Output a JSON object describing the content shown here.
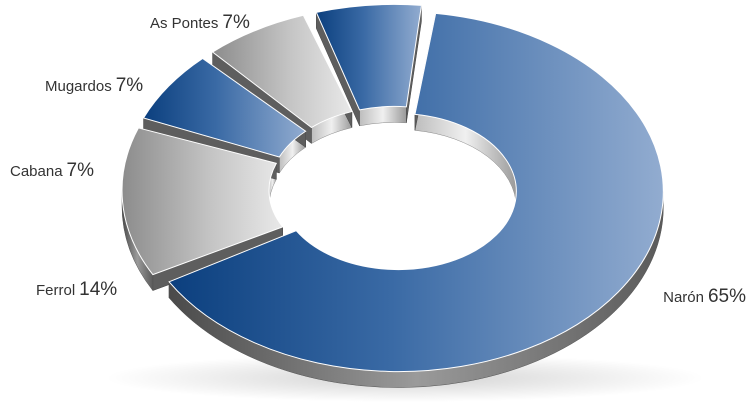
{
  "chart_data": {
    "type": "pie",
    "title": "",
    "slices": [
      {
        "label": "Narón",
        "value": 65,
        "display": "65%",
        "color": "#2f5e9a"
      },
      {
        "label": "Ferrol",
        "value": 14,
        "display": "14%",
        "color": "#a9a9a9"
      },
      {
        "label": "Cabana",
        "value": 7,
        "display": "7%",
        "color": "#2f5e9a"
      },
      {
        "label": "Mugardos",
        "value": 7,
        "display": "7%",
        "color": "#a9a9a9"
      },
      {
        "label": "As Pontes",
        "value": 7,
        "display": "7%",
        "color": "#2f5e9a"
      }
    ],
    "legend": "none",
    "style": "exploded 3D donut"
  }
}
